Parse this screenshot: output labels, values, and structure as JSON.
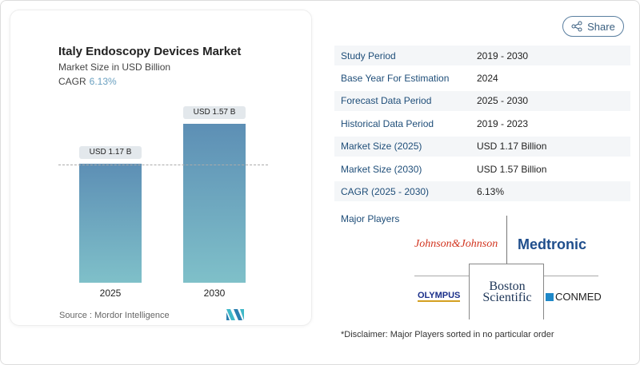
{
  "header": {
    "share_label": "Share"
  },
  "chart_data": {
    "type": "bar",
    "title": "Italy Endoscopy Devices Market",
    "subtitle": "Market Size in USD Billion",
    "cagr_label": "CAGR",
    "cagr_value": "6.13%",
    "categories": [
      "2025",
      "2030"
    ],
    "values": [
      1.17,
      1.57
    ],
    "data_labels": [
      "USD 1.17 B",
      "USD 1.57 B"
    ],
    "ylim": [
      0,
      1.6
    ],
    "source": "Source :  Mordor Intelligence"
  },
  "table": [
    {
      "label": "Study Period",
      "value": "2019 - 2030"
    },
    {
      "label": "Base Year For Estimation",
      "value": "2024"
    },
    {
      "label": "Forecast Data Period",
      "value": "2025 - 2030"
    },
    {
      "label": "Historical Data Period",
      "value": "2019 - 2023"
    },
    {
      "label": "Market Size (2025)",
      "value": "USD 1.17 Billion"
    },
    {
      "label": "Market Size (2030)",
      "value": "USD 1.57 Billion"
    },
    {
      "label": "CAGR (2025 - 2030)",
      "value": "6.13%"
    }
  ],
  "players": {
    "heading": "Major Players",
    "names": [
      "Johnson & Johnson",
      "Medtronic",
      "Olympus",
      "Boston Scientific",
      "ConMed"
    ],
    "logo_text": [
      "Johnson&Johnson",
      "Medtronic",
      "OLYMPUS",
      "Boston",
      "Scientific",
      "CONMED"
    ]
  },
  "disclaimer": "*Disclaimer: Major Players sorted in no particular order"
}
